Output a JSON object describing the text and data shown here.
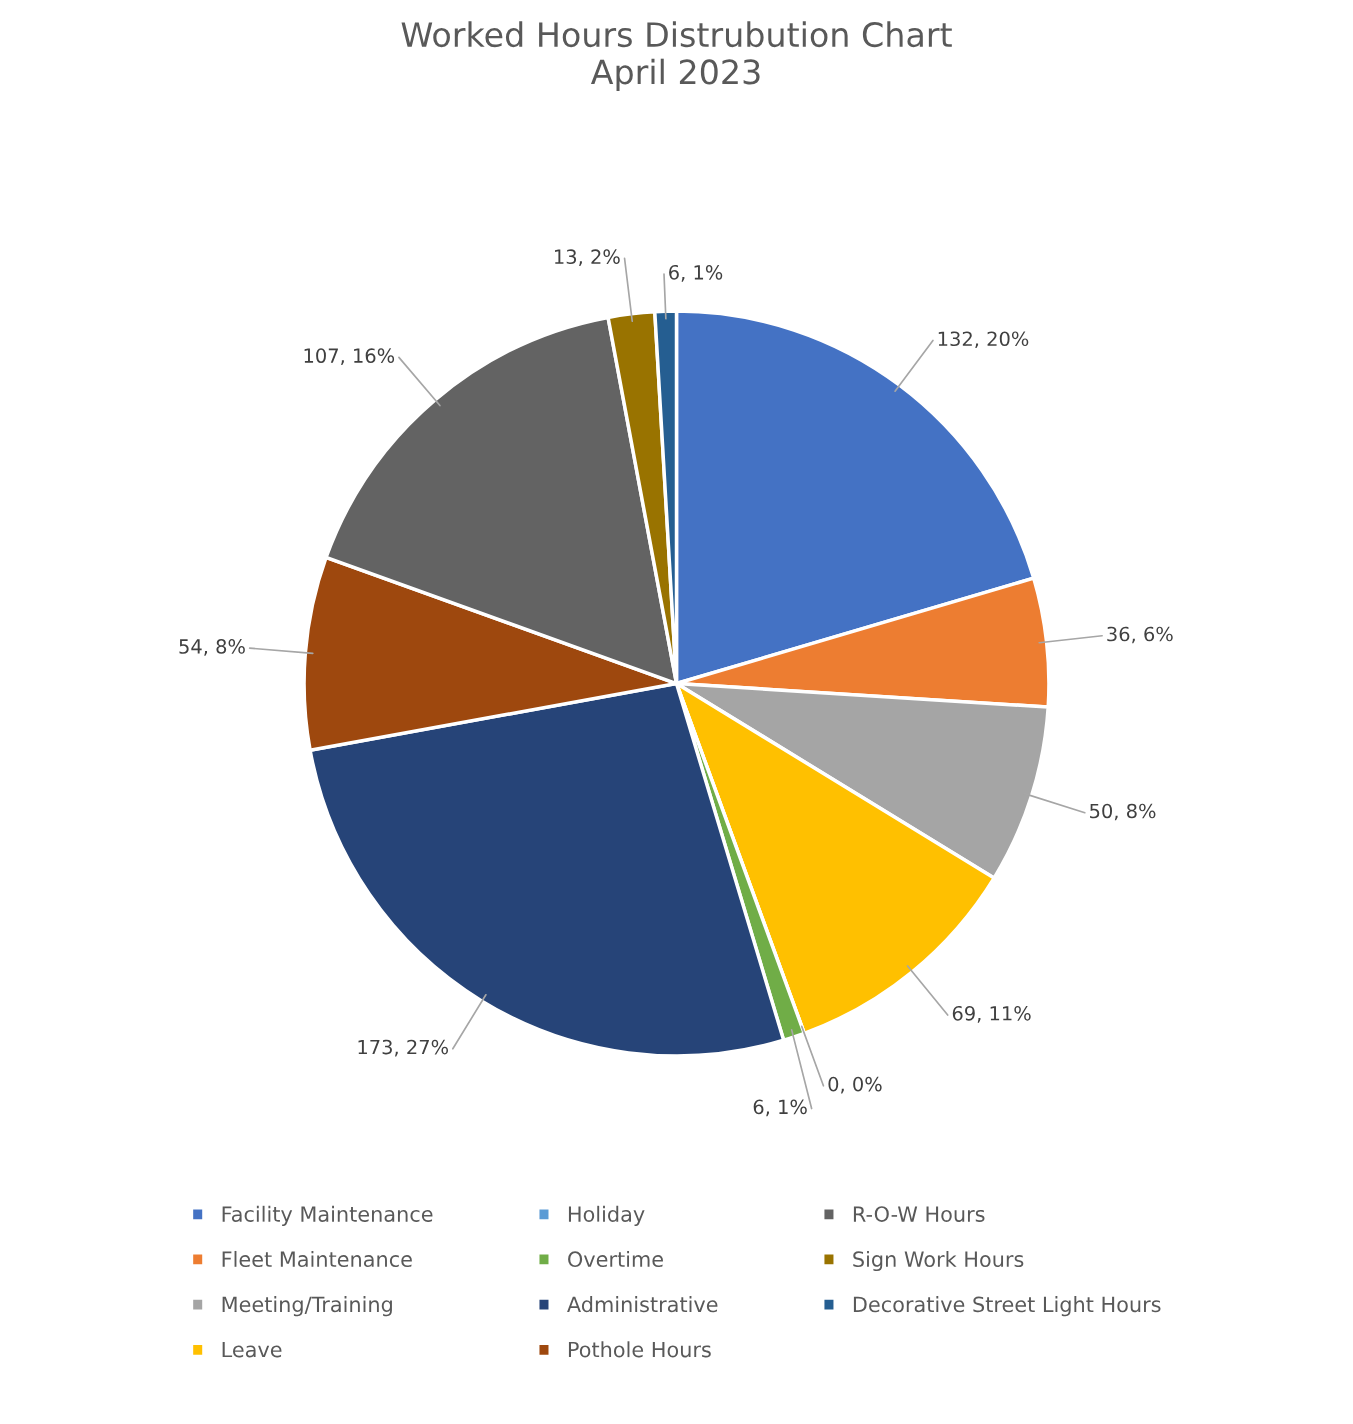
{
  "chart_data": {
    "type": "pie",
    "title": "Worked Hours Distrubution Chart\nApril 2023",
    "categories": [
      "Facility Maintenance",
      "Fleet Maintenance",
      "Meeting/Training",
      "Leave",
      "Holiday",
      "Overtime",
      "Administrative",
      "Pothole Hours",
      "R-O-W Hours",
      "Sign Work Hours",
      "Decorative Street Light Hours"
    ],
    "values": [
      132,
      36,
      50,
      69,
      0,
      6,
      173,
      54,
      107,
      13,
      6
    ],
    "value_labels": [
      "132, 20%",
      "36, 6%",
      "50, 8%",
      "69, 11%",
      "0, 0%",
      "6, 1%",
      "173, 27%",
      "54, 8%",
      "107, 16%",
      "13, 2%",
      "6, 1%"
    ],
    "colors": [
      "#4472c4",
      "#ed7d31",
      "#a5a5a5",
      "#ffc000",
      "#5b9bd5",
      "#70ad47",
      "#264478",
      "#9e480e",
      "#636363",
      "#997300",
      "#255e91"
    ],
    "legend": "bottom"
  }
}
